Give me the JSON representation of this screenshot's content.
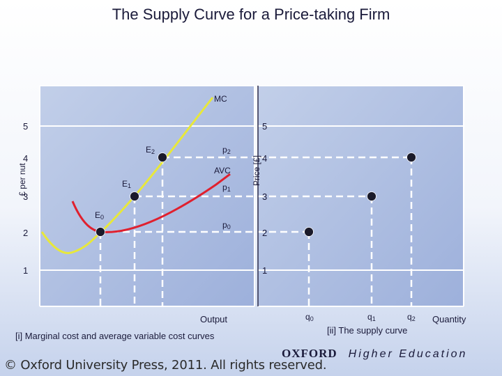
{
  "title": "The Supply Curve for a Price-taking Firm",
  "footer": {
    "copyright": "© Oxford University Press, 2011. All rights reserved.",
    "publisher": "OXFORD",
    "publisher_sub": "Higher Education"
  },
  "colors": {
    "mc_curve": "#e8e83a",
    "avc_curve": "#e0202e",
    "points": "#1a1a2a",
    "dashes": "#ffffff",
    "panel_bg": "#ffffff"
  },
  "chart_data": [
    {
      "type": "line",
      "panel": "left",
      "ylabel": "£ per nut",
      "xlabel": "Output",
      "caption": "[i] Marginal cost and average variable cost curves",
      "y_ticks": [
        "5",
        "4",
        "3",
        "2",
        "1"
      ],
      "series": [
        {
          "name": "MC",
          "curve": "marginal cost"
        },
        {
          "name": "AVC",
          "curve": "average variable cost"
        }
      ],
      "points": [
        {
          "label": "E",
          "sub": "0",
          "price": 2
        },
        {
          "label": "E",
          "sub": "1",
          "price": 3
        },
        {
          "label": "E",
          "sub": "2",
          "price": 4
        }
      ],
      "price_labels": [
        {
          "label": "p",
          "sub": "0",
          "price": 2
        },
        {
          "label": "p",
          "sub": "1",
          "price": 3
        },
        {
          "label": "p",
          "sub": "2",
          "price": 4
        }
      ]
    },
    {
      "type": "scatter",
      "panel": "right",
      "ylabel": "Price [£]",
      "xlabel": "Quantity",
      "caption": "[ii] The supply curve",
      "y_ticks": [
        "5",
        "4",
        "3",
        "2",
        "1"
      ],
      "x_categories": [
        {
          "label": "q",
          "sub": "0"
        },
        {
          "label": "q",
          "sub": "1"
        },
        {
          "label": "q",
          "sub": "2"
        }
      ],
      "points": [
        {
          "x": "q0",
          "y": 2
        },
        {
          "x": "q1",
          "y": 3
        },
        {
          "x": "q2",
          "y": 4
        }
      ]
    }
  ]
}
